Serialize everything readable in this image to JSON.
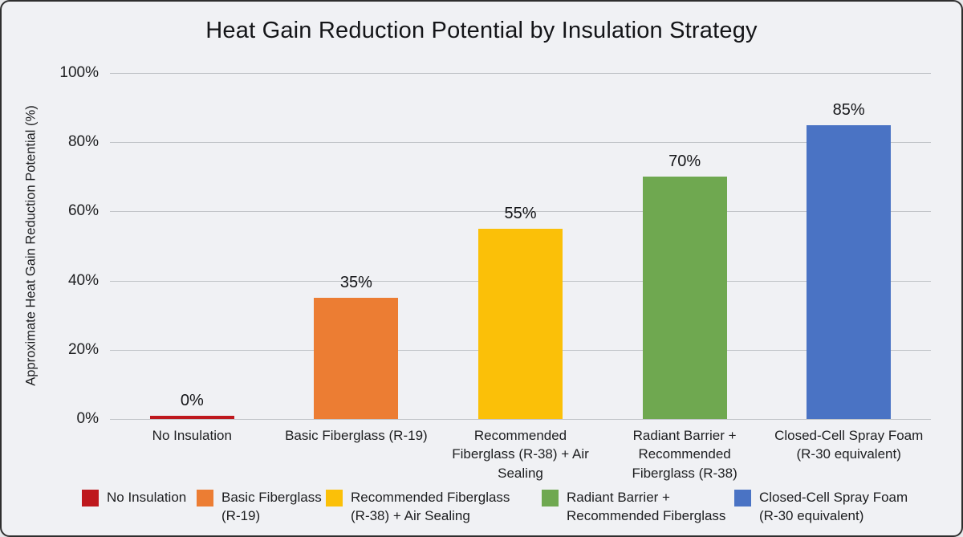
{
  "title": "Heat Gain Reduction Potential by Insulation Strategy",
  "chart_data": {
    "type": "bar",
    "title": "Heat Gain Reduction Potential by Insulation Strategy",
    "ylabel": "Approximate Heat Gain Reduction Potential (%)",
    "xlabel": "",
    "ylim": [
      0,
      100
    ],
    "grid": true,
    "legend_position": "bottom",
    "categories": [
      "No Insulation",
      "Basic Fiberglass (R-19)",
      "Recommended\nFiberglass (R-38) + Air\nSealing",
      "Radiant Barrier +\nRecommended\nFiberglass (R-38)",
      "Closed-Cell Spray Foam\n(R-30 equivalent)"
    ],
    "values": [
      0,
      35,
      55,
      70,
      85
    ],
    "bar_labels": [
      "0%",
      "35%",
      "55%",
      "70%",
      "85%"
    ],
    "colors": [
      "#be181d",
      "#ec7d33",
      "#fbc008",
      "#6fa850",
      "#4a73c4"
    ],
    "yticks": [
      0,
      20,
      40,
      60,
      80,
      100
    ],
    "ytick_labels": [
      "0%",
      "20%",
      "40%",
      "60%",
      "80%",
      "100%"
    ],
    "legend": [
      {
        "label": "No Insulation",
        "color": "#be181d"
      },
      {
        "label": "Basic Fiberglass\n(R-19)",
        "color": "#ec7d33"
      },
      {
        "label": "Recommended Fiberglass\n(R-38) + Air Sealing",
        "color": "#fbc008"
      },
      {
        "label": "Radiant Barrier +\nRecommended Fiberglass",
        "color": "#6fa850"
      },
      {
        "label": "Closed-Cell Spray Foam\n(R-30 equivalent)",
        "color": "#4a73c4"
      }
    ]
  }
}
